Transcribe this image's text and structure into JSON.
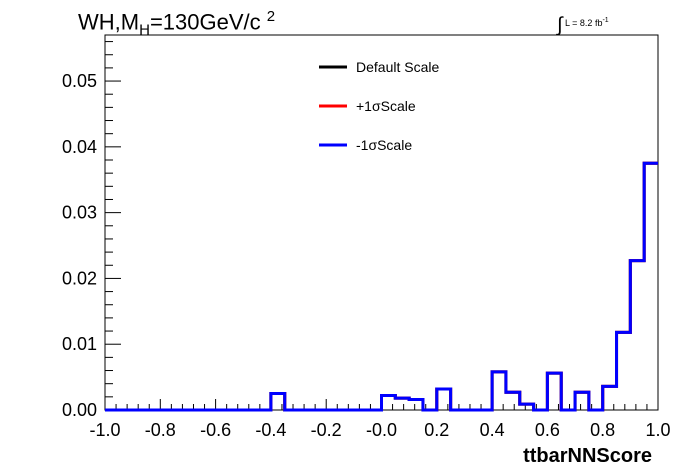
{
  "header": {
    "title_prefix": "WH,M",
    "title_sub": "H",
    "title_value": "=130GeV/c",
    "title_sup": "2",
    "lumi_symbol": "∫",
    "lumi_text": "L = 8.2 fb",
    "lumi_sup": "-1"
  },
  "chart_data": {
    "type": "histogram-step",
    "xlabel": "ttbarNNScore",
    "ylabel": "",
    "xlim": [
      -1.0,
      1.0
    ],
    "ylim": [
      0.0,
      0.057
    ],
    "x_ticks": [
      "-1.0",
      "-0.8",
      "-0.6",
      "-0.4",
      "-0.2",
      "-0.0",
      "0.2",
      "0.4",
      "0.6",
      "0.8",
      "1.0"
    ],
    "y_ticks": [
      "0.00",
      "0.01",
      "0.02",
      "0.03",
      "0.04",
      "0.05"
    ],
    "bin_edges": [
      -1.0,
      -0.95,
      -0.9,
      -0.85,
      -0.8,
      -0.75,
      -0.7,
      -0.65,
      -0.6,
      -0.55,
      -0.5,
      -0.45,
      -0.4,
      -0.35,
      -0.3,
      -0.25,
      -0.2,
      -0.15,
      -0.1,
      -0.05,
      0.0,
      0.05,
      0.1,
      0.15,
      0.2,
      0.25,
      0.3,
      0.35,
      0.4,
      0.45,
      0.5,
      0.55,
      0.6,
      0.65,
      0.7,
      0.75,
      0.8,
      0.85,
      0.9,
      0.95,
      1.0
    ],
    "legend_position": "top-center",
    "series": [
      {
        "name": "Default Scale",
        "color": "#000000",
        "values": [
          0,
          0,
          0,
          0,
          0,
          0,
          0,
          0,
          0,
          0,
          0,
          0,
          0.0025,
          0,
          0,
          0,
          0,
          0,
          0,
          0,
          0.0022,
          0.0018,
          0.0016,
          0,
          0.0032,
          0,
          0,
          0,
          0.0058,
          0.0027,
          0.0009,
          0,
          0.0056,
          0,
          0.0027,
          0,
          0.0036,
          0.0118,
          0.0227,
          0.0375
        ]
      },
      {
        "name": "+1σScale",
        "color": "#ff0000",
        "values": [
          0,
          0,
          0,
          0,
          0,
          0,
          0,
          0,
          0,
          0,
          0,
          0,
          0.0025,
          0,
          0,
          0,
          0,
          0,
          0,
          0,
          0.0022,
          0.0018,
          0.0016,
          0,
          0.0032,
          0,
          0,
          0,
          0.0058,
          0.0027,
          0.0009,
          0,
          0.0056,
          0,
          0.0027,
          0,
          0.0036,
          0.0118,
          0.0227,
          0.0375
        ]
      },
      {
        "name": "-1σScale",
        "color": "#0000ff",
        "values": [
          0,
          0,
          0,
          0,
          0,
          0,
          0,
          0,
          0,
          0,
          0,
          0,
          0.0025,
          0,
          0,
          0,
          0,
          0,
          0,
          0,
          0.0022,
          0.0018,
          0.0016,
          0,
          0.0032,
          0,
          0,
          0,
          0.0058,
          0.0027,
          0.0009,
          0,
          0.0056,
          0,
          0.0027,
          0,
          0.0036,
          0.0118,
          0.0227,
          0.0375
        ]
      }
    ]
  }
}
